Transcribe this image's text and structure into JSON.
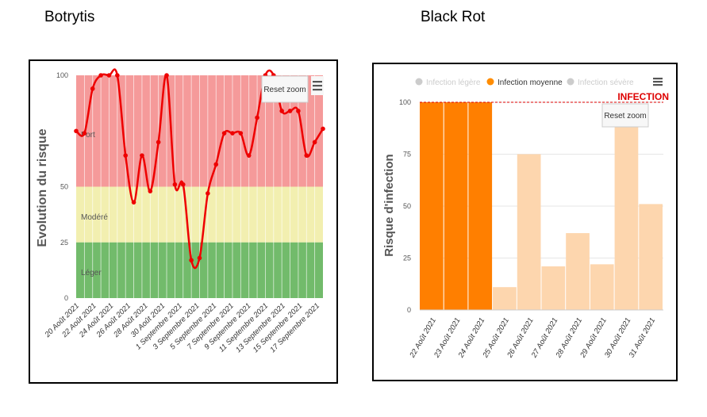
{
  "headings": {
    "left": "Botrytis",
    "right": "Black Rot"
  },
  "chart_data": [
    {
      "type": "line",
      "ylabel": "Evolution du risque",
      "ylim": [
        0,
        100
      ],
      "yticks": [
        0,
        25,
        50,
        100
      ],
      "zones": [
        {
          "label": "Léger",
          "from": 0,
          "to": 25,
          "color": "#72bb6b"
        },
        {
          "label": "Modéré",
          "from": 25,
          "to": 50,
          "color": "#f2efb0"
        },
        {
          "label": "Fort",
          "from": 50,
          "to": 100,
          "color": "#f59a9a"
        }
      ],
      "xtick_labels": [
        "20 Août 2021",
        "22 Août 2021",
        "24 Août 2021",
        "26 Août 2021",
        "28 Août 2021",
        "30 Août 2021",
        "1 Septembre 2021",
        "3 Septembre 2021",
        "5 Septembre 2021",
        "7 Septembre 2021",
        "9 Septembre 2021",
        "11 Septembre 2021",
        "13 Septembre 2021",
        "15 Septembre 2021",
        "17 Septembre 2021"
      ],
      "series": [
        {
          "color": "#ee0000",
          "values": [
            75,
            74,
            94,
            100,
            100,
            100,
            64,
            43,
            64,
            48,
            70,
            100,
            51,
            51,
            17,
            18,
            47,
            60,
            74,
            74,
            74,
            64,
            81,
            100,
            100,
            84,
            84,
            84,
            64,
            70,
            76
          ]
        }
      ],
      "button": "Reset zoom",
      "menu_icon": "hamburger-menu-icon"
    },
    {
      "type": "bar",
      "ylabel": "Risque d'infection",
      "ylim": [
        0,
        100
      ],
      "yticks": [
        0,
        25,
        50,
        75,
        100
      ],
      "categories": [
        "22 Août 2021",
        "23 Août 2021",
        "24 Août 2021",
        "25 Août 2021",
        "26 Août 2021",
        "27 Août 2021",
        "28 Août 2021",
        "29 Août 2021",
        "30 Août 2021",
        "31 Août 2021"
      ],
      "values": [
        100,
        100,
        100,
        11,
        75,
        21,
        37,
        22,
        90,
        51
      ],
      "bar_classes": [
        "moyenne",
        "moyenne",
        "moyenne",
        "light",
        "light",
        "light",
        "light",
        "light",
        "light",
        "light"
      ],
      "colors": {
        "moyenne": "#ff7f00",
        "light": "#fdd6ae"
      },
      "legend": [
        {
          "label": "Infection légère",
          "color": "#cccccc",
          "active": false
        },
        {
          "label": "Infection moyenne",
          "color": "#ff8c00",
          "active": true
        },
        {
          "label": "Infection sévère",
          "color": "#cccccc",
          "active": false
        }
      ],
      "threshold": {
        "value": 100,
        "label": "INFECTION",
        "color": "#dd0000"
      },
      "button": "Reset zoom",
      "menu_icon": "hamburger-menu-icon"
    }
  ]
}
